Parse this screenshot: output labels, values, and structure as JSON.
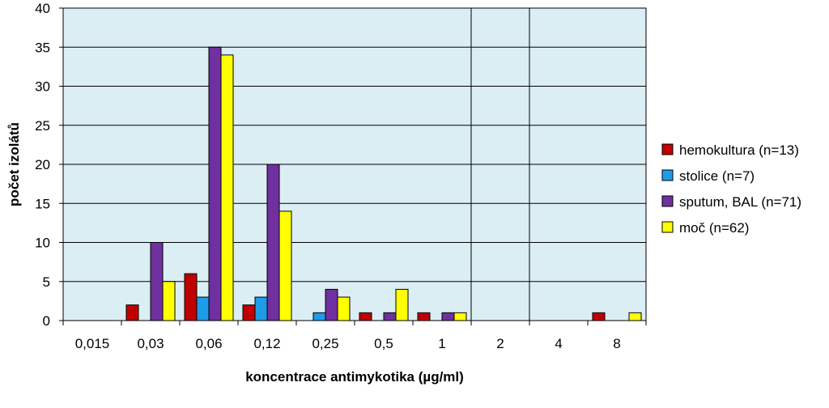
{
  "chart_data": {
    "type": "bar",
    "xlabel": "koncentrace antimykotika (µg/ml)",
    "ylabel": "počet izolátů",
    "ylim": [
      0,
      40
    ],
    "yticks": [
      0,
      5,
      10,
      15,
      20,
      25,
      30,
      35,
      40
    ],
    "grid": true,
    "legend_position": "right",
    "categories": [
      "0,015",
      "0,03",
      "0,06",
      "0,12",
      "0,25",
      "0,5",
      "1",
      "2",
      "4",
      "8"
    ],
    "series": [
      {
        "name": "hemokultura (n=13)",
        "color": "#c00000",
        "values": [
          0,
          2,
          6,
          2,
          0,
          1,
          1,
          0,
          0,
          1
        ]
      },
      {
        "name": "stolice (n=7)",
        "color": "#1f9ce8",
        "values": [
          0,
          0,
          3,
          3,
          1,
          0,
          0,
          0,
          0,
          0
        ]
      },
      {
        "name": "sputum, BAL (n=71)",
        "color": "#7030a0",
        "values": [
          0,
          10,
          35,
          20,
          4,
          1,
          1,
          0,
          0,
          0
        ]
      },
      {
        "name": "moč (n=62)",
        "color": "#ffff00",
        "values": [
          0,
          5,
          34,
          14,
          3,
          4,
          1,
          0,
          0,
          1
        ]
      }
    ]
  }
}
